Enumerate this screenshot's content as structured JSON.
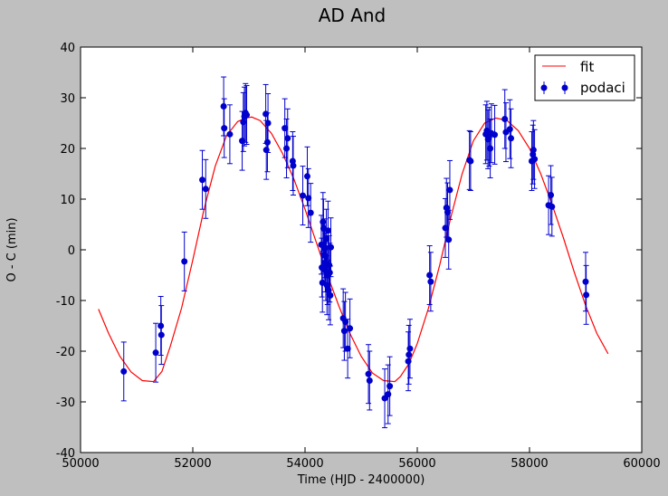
{
  "chart_data": {
    "type": "scatter",
    "title": "AD And",
    "xlabel": "Time (HJD - 2400000)",
    "ylabel": "O - C (min)",
    "xlim": [
      50000,
      60000
    ],
    "ylim": [
      -40,
      40
    ],
    "xticks": [
      50000,
      52000,
      54000,
      56000,
      58000,
      60000
    ],
    "yticks": [
      -40,
      -30,
      -20,
      -10,
      0,
      10,
      20,
      30,
      40
    ],
    "grid": false,
    "legend": {
      "position": "top-right",
      "entries": [
        "fit",
        "podaci"
      ]
    },
    "series": [
      {
        "name": "fit",
        "kind": "line",
        "color": "#ff0000",
        "x": [
          50320,
          50500,
          50700,
          50900,
          51100,
          51300,
          51450,
          51600,
          51800,
          52000,
          52200,
          52400,
          52600,
          52800,
          52950,
          53050,
          53200,
          53400,
          53600,
          53800,
          54000,
          54200,
          54400,
          54600,
          54800,
          55000,
          55200,
          55400,
          55600,
          55700,
          55850,
          56000,
          56200,
          56400,
          56600,
          56800,
          57000,
          57200,
          57400,
          57600,
          57800,
          58000,
          58200,
          58400,
          58600,
          58800,
          59000,
          59200,
          59400
        ],
        "y": [
          -11.7,
          -16.5,
          -21.0,
          -24.1,
          -25.8,
          -26.0,
          -24.0,
          -19.0,
          -11.5,
          -2.0,
          8.0,
          16.5,
          22.5,
          25.3,
          26.0,
          26.2,
          25.5,
          23.0,
          19.0,
          14.0,
          8.0,
          1.5,
          -5.0,
          -11.0,
          -16.5,
          -21.0,
          -24.3,
          -25.8,
          -26.0,
          -25.0,
          -22.5,
          -18.5,
          -11.5,
          -3.0,
          6.5,
          15.0,
          21.5,
          25.0,
          26.0,
          25.5,
          23.5,
          20.0,
          15.0,
          9.0,
          2.5,
          -4.5,
          -11.0,
          -16.5,
          -20.5
        ]
      },
      {
        "name": "podaci",
        "kind": "errorbar",
        "color": "#0000cc",
        "points": [
          {
            "x": 50770,
            "y": -24.0,
            "err": 5.8
          },
          {
            "x": 51340,
            "y": -20.3,
            "err": 5.8
          },
          {
            "x": 51430,
            "y": -15.0,
            "err": 5.8
          },
          {
            "x": 51440,
            "y": -16.8,
            "err": 5.8
          },
          {
            "x": 51850,
            "y": -2.3,
            "err": 5.8
          },
          {
            "x": 52170,
            "y": 13.8,
            "err": 5.8
          },
          {
            "x": 52230,
            "y": 12.0,
            "err": 5.8
          },
          {
            "x": 52550,
            "y": 28.3,
            "err": 5.8
          },
          {
            "x": 52560,
            "y": 24.0,
            "err": 5.8
          },
          {
            "x": 52660,
            "y": 22.8,
            "err": 5.8
          },
          {
            "x": 52880,
            "y": 21.5,
            "err": 5.8
          },
          {
            "x": 52900,
            "y": 25.2,
            "err": 5.8
          },
          {
            "x": 52920,
            "y": 26.3,
            "err": 5.8
          },
          {
            "x": 52940,
            "y": 27.0,
            "err": 5.8
          },
          {
            "x": 52960,
            "y": 26.6,
            "err": 5.8
          },
          {
            "x": 53300,
            "y": 26.8,
            "err": 5.8
          },
          {
            "x": 53310,
            "y": 19.7,
            "err": 5.8
          },
          {
            "x": 53330,
            "y": 21.2,
            "err": 5.8
          },
          {
            "x": 53340,
            "y": 25.0,
            "err": 5.8
          },
          {
            "x": 53640,
            "y": 24.0,
            "err": 5.8
          },
          {
            "x": 53670,
            "y": 20.0,
            "err": 5.8
          },
          {
            "x": 53690,
            "y": 22.0,
            "err": 5.8
          },
          {
            "x": 53780,
            "y": 17.5,
            "err": 5.8
          },
          {
            "x": 53790,
            "y": 16.6,
            "err": 5.8
          },
          {
            "x": 53960,
            "y": 10.7,
            "err": 5.8
          },
          {
            "x": 54040,
            "y": 14.5,
            "err": 5.8
          },
          {
            "x": 54060,
            "y": 10.2,
            "err": 5.8
          },
          {
            "x": 54100,
            "y": 7.3,
            "err": 5.8
          },
          {
            "x": 54290,
            "y": 1.0,
            "err": 5.8
          },
          {
            "x": 54300,
            "y": -3.5,
            "err": 5.8
          },
          {
            "x": 54310,
            "y": -6.5,
            "err": 5.8
          },
          {
            "x": 54320,
            "y": 5.5,
            "err": 5.8
          },
          {
            "x": 54330,
            "y": 4.2,
            "err": 5.8
          },
          {
            "x": 54340,
            "y": -1.0,
            "err": 5.8
          },
          {
            "x": 54350,
            "y": 0.3,
            "err": 5.8
          },
          {
            "x": 54360,
            "y": -2.5,
            "err": 5.8
          },
          {
            "x": 54370,
            "y": -4.2,
            "err": 5.8
          },
          {
            "x": 54380,
            "y": 2.2,
            "err": 5.8
          },
          {
            "x": 54390,
            "y": -7.0,
            "err": 5.8
          },
          {
            "x": 54400,
            "y": -5.0,
            "err": 5.8
          },
          {
            "x": 54410,
            "y": 3.8,
            "err": 5.8
          },
          {
            "x": 54420,
            "y": -8.0,
            "err": 5.8
          },
          {
            "x": 54430,
            "y": -3.0,
            "err": 5.8
          },
          {
            "x": 54440,
            "y": -4.5,
            "err": 5.8
          },
          {
            "x": 54450,
            "y": -9.0,
            "err": 5.8
          },
          {
            "x": 54460,
            "y": 0.5,
            "err": 5.8
          },
          {
            "x": 54680,
            "y": -13.5,
            "err": 5.8
          },
          {
            "x": 54700,
            "y": -16.0,
            "err": 5.8
          },
          {
            "x": 54720,
            "y": -14.2,
            "err": 5.8
          },
          {
            "x": 54760,
            "y": -19.5,
            "err": 5.8
          },
          {
            "x": 54800,
            "y": -15.5,
            "err": 5.8
          },
          {
            "x": 55130,
            "y": -24.5,
            "err": 5.8
          },
          {
            "x": 55150,
            "y": -25.8,
            "err": 5.8
          },
          {
            "x": 55420,
            "y": -29.3,
            "err": 5.8
          },
          {
            "x": 55480,
            "y": -28.5,
            "err": 5.8
          },
          {
            "x": 55510,
            "y": -26.9,
            "err": 5.8
          },
          {
            "x": 55840,
            "y": -22.0,
            "err": 5.8
          },
          {
            "x": 55850,
            "y": -20.7,
            "err": 5.8
          },
          {
            "x": 55870,
            "y": -19.5,
            "err": 5.8
          },
          {
            "x": 56220,
            "y": -5.0,
            "err": 5.8
          },
          {
            "x": 56240,
            "y": -6.3,
            "err": 5.8
          },
          {
            "x": 56500,
            "y": 4.3,
            "err": 5.8
          },
          {
            "x": 56520,
            "y": 8.3,
            "err": 5.8
          },
          {
            "x": 56540,
            "y": 7.4,
            "err": 5.8
          },
          {
            "x": 56560,
            "y": 2.0,
            "err": 5.8
          },
          {
            "x": 56580,
            "y": 11.8,
            "err": 5.8
          },
          {
            "x": 56930,
            "y": 17.7,
            "err": 5.8
          },
          {
            "x": 56950,
            "y": 17.5,
            "err": 5.8
          },
          {
            "x": 57220,
            "y": 22.8,
            "err": 5.8
          },
          {
            "x": 57240,
            "y": 23.5,
            "err": 5.8
          },
          {
            "x": 57260,
            "y": 21.8,
            "err": 5.8
          },
          {
            "x": 57280,
            "y": 22.3,
            "err": 5.8
          },
          {
            "x": 57300,
            "y": 20.0,
            "err": 5.8
          },
          {
            "x": 57320,
            "y": 23.0,
            "err": 5.8
          },
          {
            "x": 57380,
            "y": 22.7,
            "err": 5.8
          },
          {
            "x": 57560,
            "y": 25.8,
            "err": 5.8
          },
          {
            "x": 57580,
            "y": 23.2,
            "err": 5.8
          },
          {
            "x": 57650,
            "y": 23.8,
            "err": 5.8
          },
          {
            "x": 57670,
            "y": 22.0,
            "err": 5.8
          },
          {
            "x": 58040,
            "y": 17.5,
            "err": 5.8
          },
          {
            "x": 58060,
            "y": 18.8,
            "err": 5.8
          },
          {
            "x": 58070,
            "y": 19.7,
            "err": 5.8
          },
          {
            "x": 58090,
            "y": 17.9,
            "err": 5.8
          },
          {
            "x": 58340,
            "y": 8.8,
            "err": 5.8
          },
          {
            "x": 58380,
            "y": 10.8,
            "err": 5.8
          },
          {
            "x": 58400,
            "y": 8.5,
            "err": 5.8
          },
          {
            "x": 59000,
            "y": -6.3,
            "err": 5.8
          },
          {
            "x": 59010,
            "y": -8.9,
            "err": 5.8
          }
        ]
      }
    ]
  }
}
